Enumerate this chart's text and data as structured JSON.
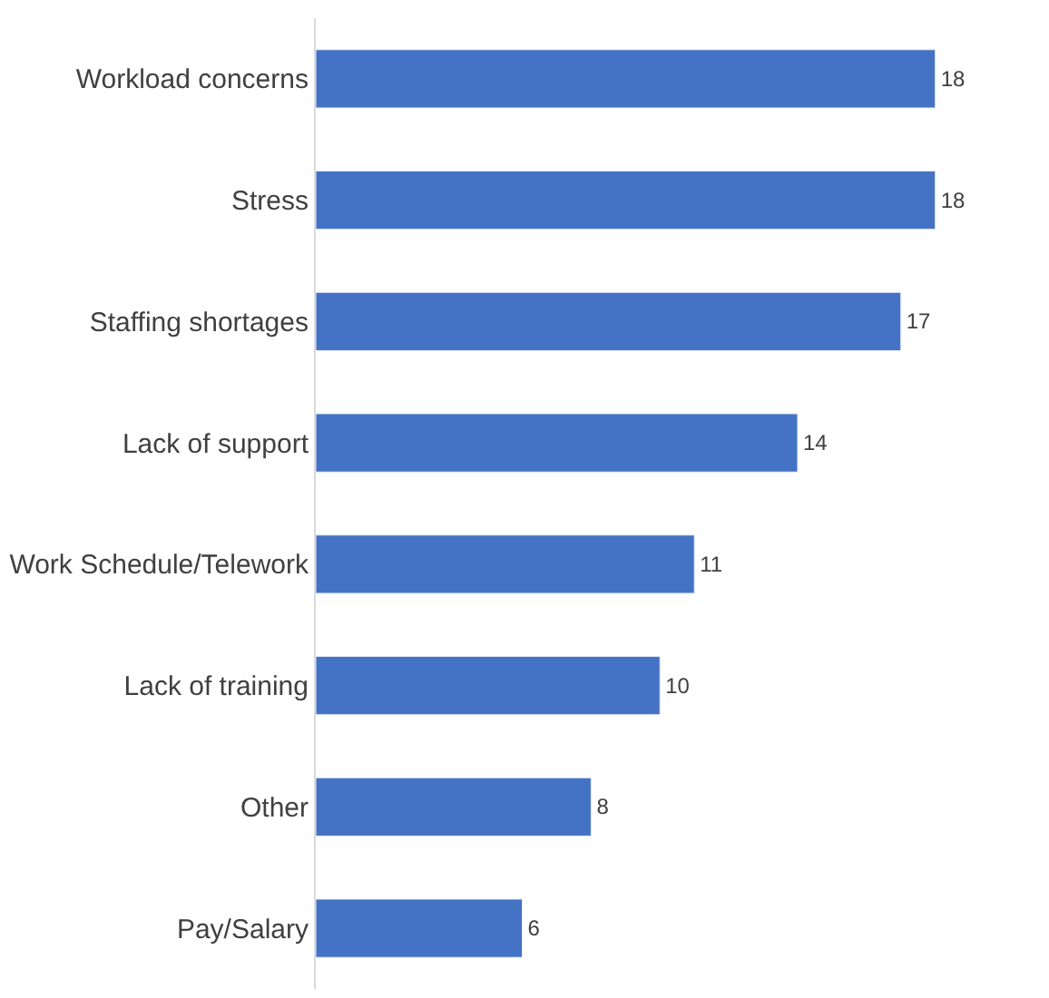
{
  "chart_data": {
    "type": "bar",
    "orientation": "horizontal",
    "categories": [
      "Workload concerns",
      "Stress",
      "Staffing shortages",
      "Lack of support",
      "Work Schedule/Telework",
      "Lack of training",
      "Other",
      "Pay/Salary"
    ],
    "values": [
      18,
      18,
      17,
      14,
      11,
      10,
      8,
      6
    ],
    "color": "#4472c4",
    "data_labels": true,
    "legend": false,
    "tick_labels": "y"
  }
}
